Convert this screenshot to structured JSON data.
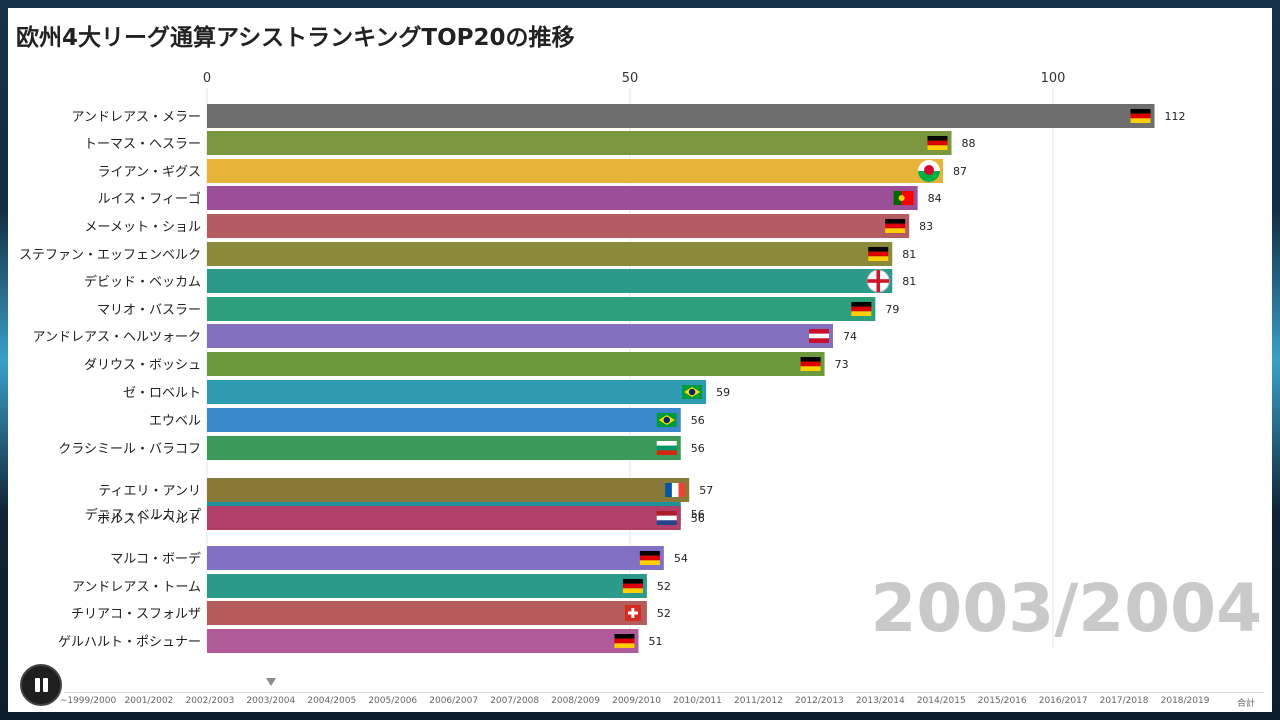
{
  "title": "欧州4大リーグ通算アシストランキングTOP20の推移",
  "current_period": "2003/2004",
  "chart_data": {
    "type": "bar",
    "orientation": "horizontal",
    "title": "欧州4大リーグ通算アシストランキングTOP20の推移",
    "xlim": [
      0,
      112
    ],
    "x_ticks": [
      0,
      50,
      100
    ],
    "grid": true,
    "bars": [
      {
        "name": "アンドレアス・メラー",
        "value": 112,
        "color": "#6e6e6e",
        "flag": "germany"
      },
      {
        "name": "トーマス・ヘスラー",
        "value": 88,
        "color": "#7a963e",
        "flag": "germany"
      },
      {
        "name": "ライアン・ギグス",
        "value": 87,
        "color": "#e7b43a",
        "flag": "wales"
      },
      {
        "name": "ルイス・フィーゴ",
        "value": 84,
        "color": "#9b4f99",
        "flag": "portugal"
      },
      {
        "name": "メーメット・ショル",
        "value": 83,
        "color": "#b55b62",
        "flag": "germany"
      },
      {
        "name": "ステファン・エッフェンベルク",
        "value": 81,
        "color": "#8a8a3a",
        "flag": "germany"
      },
      {
        "name": "デビッド・ベッカム",
        "value": 81,
        "color": "#2b9a8a",
        "flag": "england"
      },
      {
        "name": "マリオ・バスラー",
        "value": 79,
        "color": "#2e9f7b",
        "flag": "germany"
      },
      {
        "name": "アンドレアス・ヘルツォーク",
        "value": 74,
        "color": "#8570c0",
        "flag": "austria"
      },
      {
        "name": "ダリウス・ボッシュ",
        "value": 73,
        "color": "#6e9a3e",
        "flag": "germany"
      },
      {
        "name": "ゼ・ロベルト",
        "value": 59,
        "color": "#2f9bb0",
        "flag": "brazil"
      },
      {
        "name": "エウベル",
        "value": 56,
        "color": "#3a8acb",
        "flag": "brazil"
      },
      {
        "name": "クラシミール・バラコフ",
        "value": 56,
        "color": "#3a9a5a",
        "flag": "bulgaria"
      },
      {
        "name": "ティエリ・アンリ",
        "value": 57,
        "color": "#8a7a3a",
        "flag": "france"
      },
      {
        "name": "デニス・ベルカンプ",
        "value": 56,
        "color": "#1f8f9a",
        "flag": "netherlands"
      },
      {
        "name": "ボルスト・ヘルト",
        "value": 56,
        "color": "#b0406a",
        "flag": "netherlands"
      },
      {
        "name": "マルコ・ボーデ",
        "value": 54,
        "color": "#8270c4",
        "flag": "germany"
      },
      {
        "name": "アンドレアス・トーム",
        "value": 52,
        "color": "#2b9a8a",
        "flag": "germany"
      },
      {
        "name": "チリアコ・スフォルザ",
        "value": 52,
        "color": "#b55b5b",
        "flag": "switzerland"
      },
      {
        "name": "ゲルハルト・ポシュナー",
        "value": 51,
        "color": "#b05a9a",
        "flag": "germany"
      }
    ]
  },
  "timeline": {
    "labels": [
      "~1999/2000",
      "2001/2002",
      "2002/2003",
      "2003/2004",
      "2004/2005",
      "2005/2006",
      "2006/2007",
      "2007/2008",
      "2008/2009",
      "2009/2010",
      "2010/2011",
      "2011/2012",
      "2012/2013",
      "2013/2014",
      "2014/2015",
      "2015/2016",
      "2016/2017",
      "2017/2018",
      "2018/2019",
      "合計"
    ],
    "current_index": 3
  }
}
